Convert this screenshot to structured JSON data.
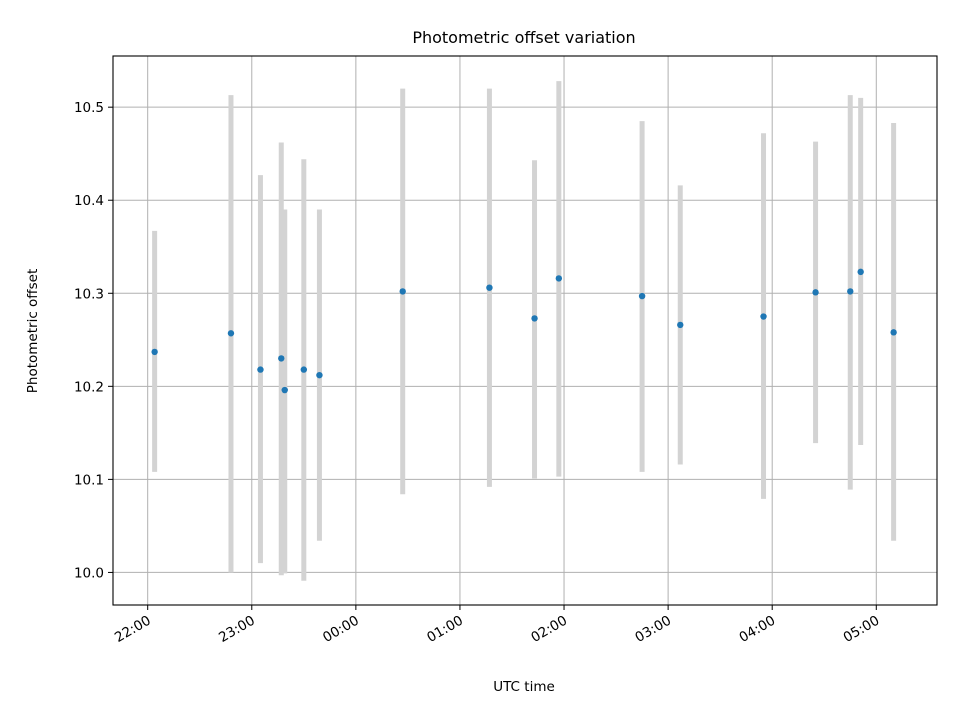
{
  "chart_data": {
    "type": "scatter",
    "title": "Photometric offset variation",
    "xlabel": "UTC time",
    "ylabel": "Photometric offset",
    "x_axis": "time",
    "xlim": [
      "21:40",
      "05:35"
    ],
    "ylim": [
      9.965,
      10.555
    ],
    "grid": true,
    "x_tick_labels": [
      "22:00",
      "23:00",
      "00:00",
      "01:00",
      "02:00",
      "03:00",
      "04:00",
      "05:00"
    ],
    "x_tick_rotation_deg": 30,
    "y_ticks": [
      10.0,
      10.1,
      10.2,
      10.3,
      10.4,
      10.5
    ],
    "y_tick_labels": [
      "10.0",
      "10.1",
      "10.2",
      "10.3",
      "10.4",
      "10.5"
    ],
    "marker_color": "#1f77b4",
    "errorbar_color": "#d3d3d3",
    "grid_color": "#b0b0b0",
    "points": [
      {
        "time": "22:04",
        "y": 10.237,
        "yerr_low": 10.108,
        "yerr_high": 10.367
      },
      {
        "time": "22:48",
        "y": 10.257,
        "yerr_low": 10.0,
        "yerr_high": 10.513
      },
      {
        "time": "23:05",
        "y": 10.218,
        "yerr_low": 10.01,
        "yerr_high": 10.427
      },
      {
        "time": "23:17",
        "y": 10.23,
        "yerr_low": 9.997,
        "yerr_high": 10.462
      },
      {
        "time": "23:19",
        "y": 10.196,
        "yerr_low": 9.999,
        "yerr_high": 10.39
      },
      {
        "time": "23:30",
        "y": 10.218,
        "yerr_low": 9.991,
        "yerr_high": 10.444
      },
      {
        "time": "23:39",
        "y": 10.212,
        "yerr_low": 10.034,
        "yerr_high": 10.39
      },
      {
        "time": "00:27",
        "y": 10.302,
        "yerr_low": 10.084,
        "yerr_high": 10.52
      },
      {
        "time": "01:17",
        "y": 10.306,
        "yerr_low": 10.092,
        "yerr_high": 10.52
      },
      {
        "time": "01:43",
        "y": 10.273,
        "yerr_low": 10.101,
        "yerr_high": 10.443
      },
      {
        "time": "01:57",
        "y": 10.316,
        "yerr_low": 10.103,
        "yerr_high": 10.528
      },
      {
        "time": "02:45",
        "y": 10.297,
        "yerr_low": 10.108,
        "yerr_high": 10.485
      },
      {
        "time": "03:07",
        "y": 10.266,
        "yerr_low": 10.116,
        "yerr_high": 10.416
      },
      {
        "time": "03:55",
        "y": 10.275,
        "yerr_low": 10.079,
        "yerr_high": 10.472
      },
      {
        "time": "04:25",
        "y": 10.301,
        "yerr_low": 10.139,
        "yerr_high": 10.463
      },
      {
        "time": "04:45",
        "y": 10.302,
        "yerr_low": 10.089,
        "yerr_high": 10.513
      },
      {
        "time": "04:51",
        "y": 10.323,
        "yerr_low": 10.137,
        "yerr_high": 10.51
      },
      {
        "time": "05:10",
        "y": 10.258,
        "yerr_low": 10.034,
        "yerr_high": 10.483
      }
    ]
  }
}
